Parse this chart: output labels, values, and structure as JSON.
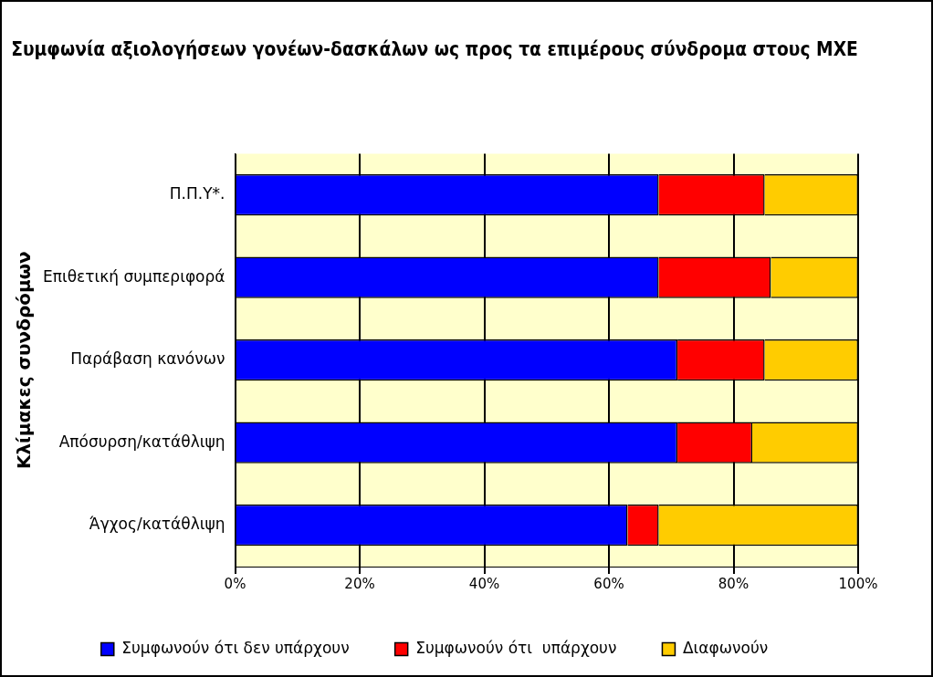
{
  "chart_data": {
    "type": "bar",
    "orientation": "horizontal",
    "stacked": true,
    "title": "Συμφωνία αξιολογήσεων γονέων-δασκάλων ως προς τα επιμέρους σύνδρομα στους ΜΧΕ",
    "ylabel": "Κλίμακες συνδρόμων",
    "categories": [
      "Π.Π.Υ*.",
      "Επιθετική συμπεριφορά",
      "Παράβαση κανόνων",
      "Απόσυρση/κατάθλιψη",
      "Άγχος/κατάθλιψη"
    ],
    "series": [
      {
        "name": "Συμφωνούν ότι δεν υπάρχουν",
        "color": "#0000ff",
        "values": [
          68,
          68,
          71,
          71,
          63
        ]
      },
      {
        "name": "Συμφωνούν ότι  υπάρχουν",
        "color": "#ff0000",
        "values": [
          17,
          18,
          14,
          12,
          5
        ]
      },
      {
        "name": "Διαφωνούν",
        "color": "#ffcc00",
        "values": [
          15,
          14,
          15,
          17,
          32
        ]
      }
    ],
    "xlim": [
      0,
      100
    ],
    "xticks": [
      {
        "value": 0,
        "label": "0%"
      },
      {
        "value": 20,
        "label": "20%"
      },
      {
        "value": 40,
        "label": "40%"
      },
      {
        "value": 60,
        "label": "60%"
      },
      {
        "value": 80,
        "label": "80%"
      },
      {
        "value": 100,
        "label": "100%"
      }
    ],
    "grid": "x",
    "legend": "bottom"
  }
}
